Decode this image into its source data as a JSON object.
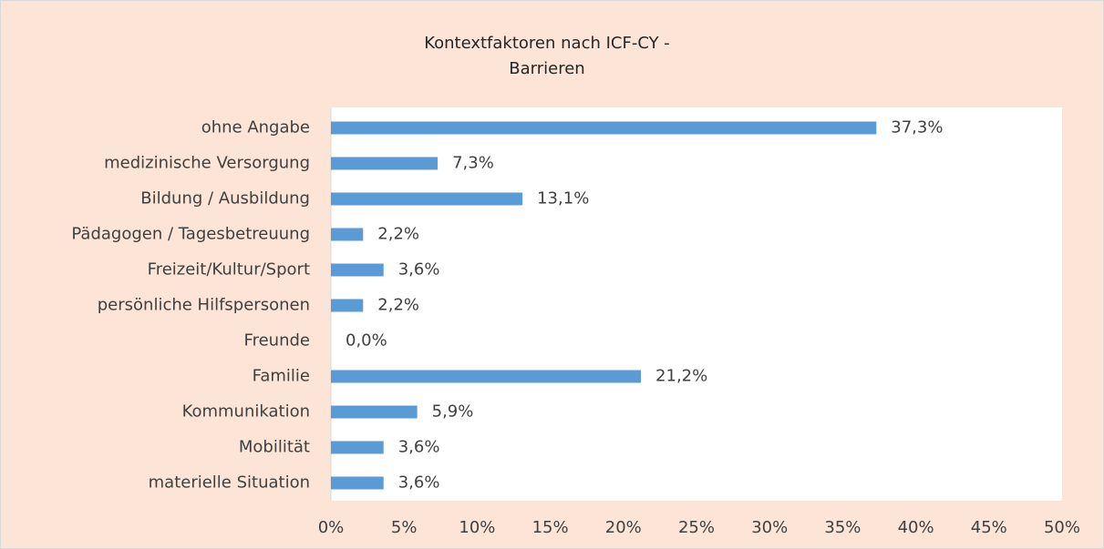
{
  "chart_data": {
    "type": "barh",
    "title": [
      "Kontextfaktoren nach ICF-CY -",
      "Barrieren"
    ],
    "categories": [
      "ohne Angabe",
      "medizinische Versorgung",
      "Bildung / Ausbildung",
      "Pädagogen / Tagesbetreuung",
      "Freizeit/Kultur/Sport",
      "persönliche Hilfspersonen",
      "Freunde",
      "Familie",
      "Kommunikation",
      "Mobilität",
      "materielle Situation"
    ],
    "values": [
      37.3,
      7.3,
      13.1,
      2.2,
      3.6,
      2.2,
      0.0,
      21.2,
      5.9,
      3.6,
      3.6
    ],
    "value_labels": [
      "37,3%",
      "7,3%",
      "13,1%",
      "2,2%",
      "3,6%",
      "2,2%",
      "0,0%",
      "21,2%",
      "5,9%",
      "3,6%",
      "3,6%"
    ],
    "color": "#5b9bd5",
    "xlim": [
      0,
      50
    ],
    "xticks": [
      {
        "value": 0,
        "label": "0%"
      },
      {
        "value": 5,
        "label": "5%"
      },
      {
        "value": 10,
        "label": "10%"
      },
      {
        "value": 15,
        "label": "15%"
      },
      {
        "value": 20,
        "label": "20%"
      },
      {
        "value": 25,
        "label": "25%"
      },
      {
        "value": 30,
        "label": "30%"
      },
      {
        "value": 35,
        "label": "35%"
      },
      {
        "value": 40,
        "label": "40%"
      },
      {
        "value": 45,
        "label": "45%"
      },
      {
        "value": 50,
        "label": "50%"
      }
    ],
    "grid": false
  }
}
